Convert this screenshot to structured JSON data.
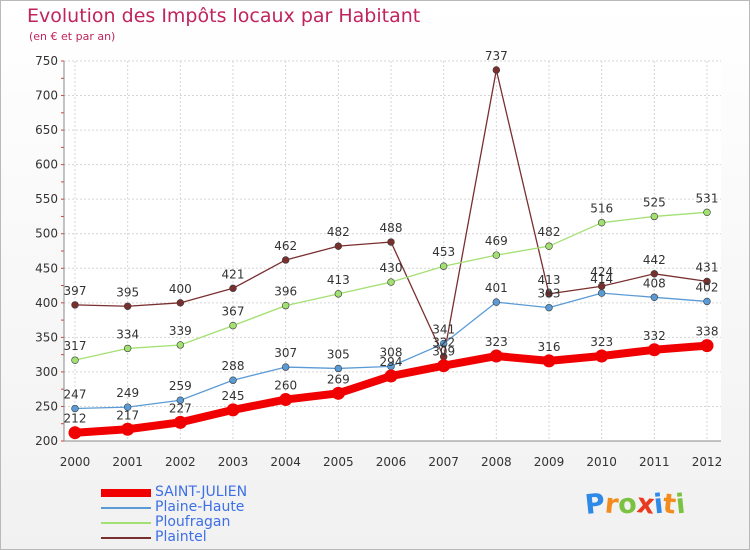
{
  "chart_data": {
    "type": "line",
    "title": "Evolution des Impôts locaux par Habitant",
    "subtitle": "(en € et par an)",
    "x": [
      "2000",
      "2001",
      "2002",
      "2003",
      "2004",
      "2005",
      "2006",
      "2007",
      "2008",
      "2009",
      "2010",
      "2011",
      "2012"
    ],
    "ylim": [
      200,
      750
    ],
    "yticks": [
      200,
      250,
      300,
      350,
      400,
      450,
      500,
      550,
      600,
      650,
      700,
      750
    ],
    "grid": true,
    "legend_position": "bottom-left",
    "series": [
      {
        "name": "SAINT-JULIEN",
        "color": "#f00000",
        "values": [
          212,
          217,
          227,
          245,
          260,
          269,
          294,
          309,
          323,
          316,
          323,
          332,
          338
        ]
      },
      {
        "name": "Plaine-Haute",
        "color": "#5b9bd5",
        "values": [
          247,
          249,
          259,
          288,
          307,
          305,
          308,
          341,
          401,
          393,
          414,
          408,
          402
        ]
      },
      {
        "name": "Ploufragan",
        "color": "#a3e072",
        "values": [
          317,
          334,
          339,
          367,
          396,
          413,
          430,
          453,
          469,
          482,
          516,
          525,
          531
        ]
      },
      {
        "name": "Plaintel",
        "color": "#7a2f2f",
        "values": [
          397,
          395,
          400,
          421,
          462,
          482,
          488,
          322,
          737,
          413,
          424,
          442,
          431
        ]
      }
    ]
  },
  "logo": {
    "letters": [
      "P",
      "r",
      "o",
      "x",
      "i",
      "t",
      "i"
    ],
    "colors": [
      "#2e8ae6",
      "#f28c1e",
      "#7cc242",
      "#e83a1e",
      "#2e8ae6",
      "#f28c1e",
      "#7cc242"
    ]
  }
}
